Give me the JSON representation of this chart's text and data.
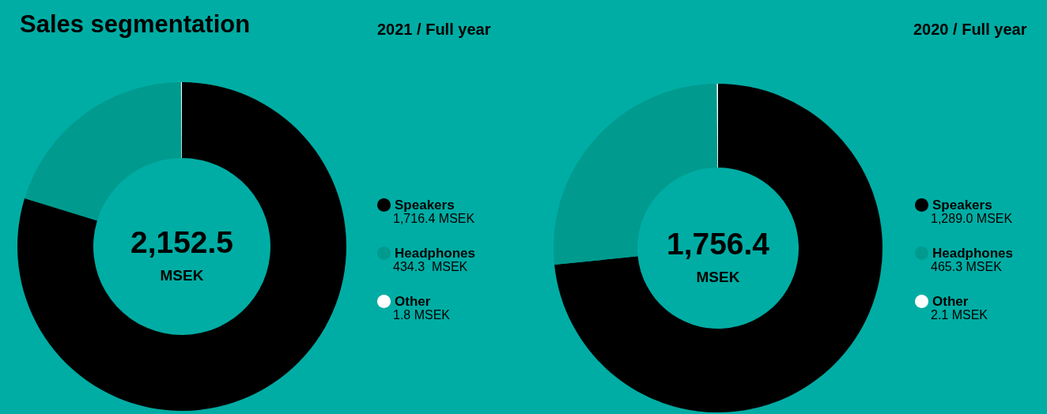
{
  "chart_data": [
    {
      "type": "donut",
      "title": "Sales segmentation",
      "subtitle": "2021 / Full year",
      "categories": [
        "Speakers",
        "Headphones",
        "Other"
      ],
      "values": [
        1716.4,
        434.3,
        1.8
      ],
      "colors": [
        "#000000",
        "#009a8e",
        "#ffffff"
      ],
      "value_labels": [
        "1,716.4 MSEK",
        "434.3  MSEK",
        "1.8 MSEK"
      ],
      "annotations": [
        "2,152.5",
        "MSEK"
      ],
      "legend": "right"
    },
    {
      "type": "donut",
      "subtitle": "2020 / Full year",
      "categories": [
        "Speakers",
        "Headphones",
        "Other"
      ],
      "values": [
        1289.0,
        465.3,
        2.1
      ],
      "colors": [
        "#000000",
        "#009a8e",
        "#ffffff"
      ],
      "value_labels": [
        "1,289.0 MSEK",
        "465.3 MSEK",
        "2.1 MSEK"
      ],
      "annotations": [
        "1,756.4",
        "MSEK"
      ],
      "legend": "right"
    }
  ]
}
